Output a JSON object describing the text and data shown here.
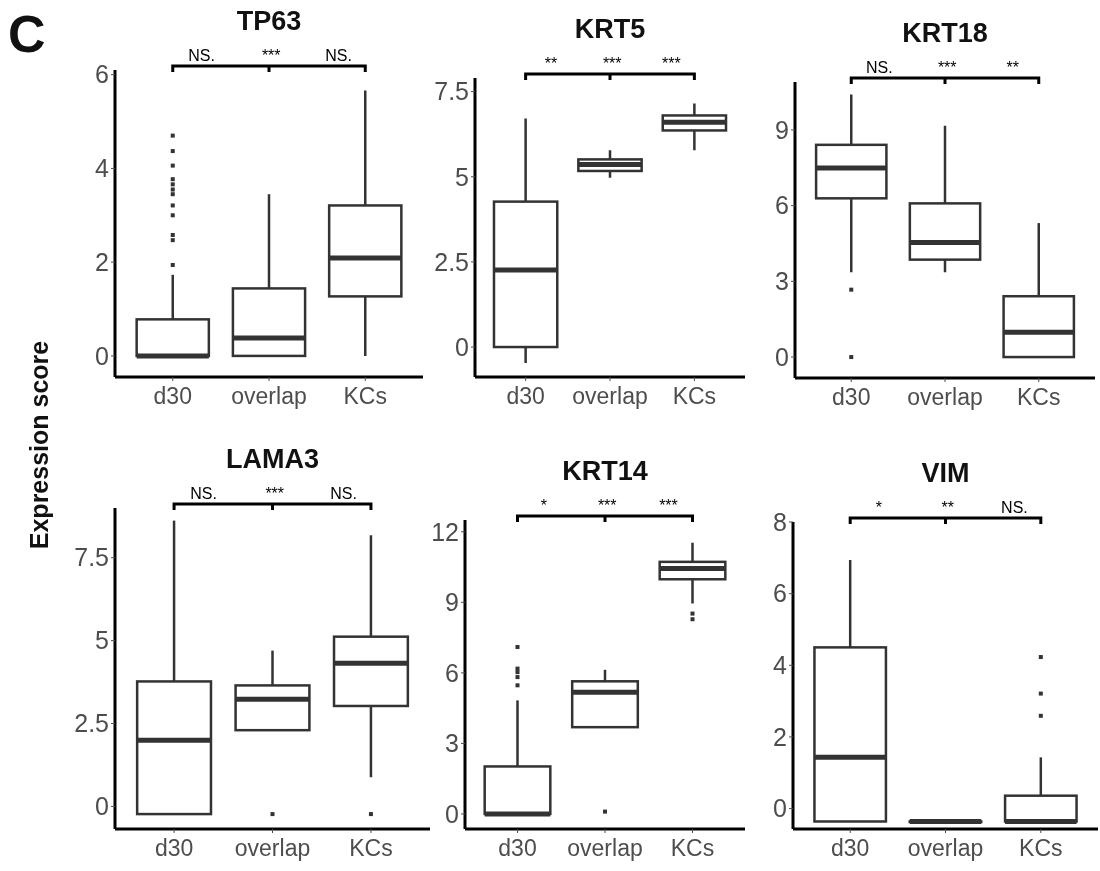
{
  "chart_data": [
    {
      "type": "box",
      "title": "TP63",
      "ylabel": "Expression score",
      "categories": [
        "d30",
        "overlap",
        "KCs"
      ],
      "ylim": [
        -0.45,
        6.1
      ],
      "yticks": [
        0,
        2,
        4,
        6
      ],
      "annotations": [
        "C",
        "NS. *** NS."
      ],
      "boxes": [
        {
          "low": 0,
          "q1": 0,
          "median": 0,
          "q3": 0.78,
          "high": 1.73,
          "outliers": [
            1.94,
            2.47,
            2.58,
            3.0,
            3.21,
            3.45,
            3.55,
            3.66,
            3.77,
            4.06,
            4.37,
            4.7
          ]
        },
        {
          "low": 0,
          "q1": 0,
          "median": 0.38,
          "q3": 1.44,
          "high": 3.45
        },
        {
          "low": 0,
          "q1": 1.27,
          "median": 2.09,
          "q3": 3.21,
          "high": 5.66
        }
      ]
    },
    {
      "type": "box",
      "title": "KRT5",
      "categories": [
        "d30",
        "overlap",
        "KCs"
      ],
      "ylim": [
        -0.88,
        7.9
      ],
      "yticks": [
        0,
        2.5,
        5,
        7.5
      ],
      "annotations": [
        "** *** ***"
      ],
      "boxes": [
        {
          "low": -0.47,
          "q1": 0,
          "median": 2.26,
          "q3": 4.27,
          "high": 6.71
        },
        {
          "low": 4.97,
          "q1": 5.17,
          "median": 5.36,
          "q3": 5.51,
          "high": 5.78
        },
        {
          "low": 5.78,
          "q1": 6.36,
          "median": 6.6,
          "q3": 6.8,
          "high": 7.15
        }
      ]
    },
    {
      "type": "box",
      "title": "KRT18",
      "categories": [
        "d30",
        "overlap",
        "KCs"
      ],
      "ylim": [
        -0.83,
        10.9
      ],
      "yticks": [
        0,
        3,
        6,
        9
      ],
      "annotations": [
        "NS. *** **"
      ],
      "boxes": [
        {
          "low": 3.36,
          "q1": 6.29,
          "median": 7.49,
          "q3": 8.41,
          "high": 10.4,
          "outliers": [
            0,
            2.67
          ]
        },
        {
          "low": 3.36,
          "q1": 3.86,
          "median": 4.54,
          "q3": 6.09,
          "high": 9.17
        },
        {
          "low": 0,
          "q1": 0,
          "median": 0.98,
          "q3": 2.41,
          "high": 5.31
        }
      ]
    },
    {
      "type": "box",
      "title": "LAMA3",
      "categories": [
        "d30",
        "overlap",
        "KCs"
      ],
      "ylim": [
        -0.68,
        9.0
      ],
      "yticks": [
        0,
        2.5,
        5,
        7.5
      ],
      "annotations": [
        "NS. *** NS."
      ],
      "boxes": [
        {
          "low": -0.23,
          "q1": -0.23,
          "median": 2.0,
          "q3": 3.77,
          "high": 8.62
        },
        {
          "low": 2.3,
          "q1": 2.3,
          "median": 3.23,
          "q3": 3.65,
          "high": 4.7,
          "outliers": [
            -0.23
          ]
        },
        {
          "low": 0.88,
          "q1": 3.03,
          "median": 4.32,
          "q3": 5.12,
          "high": 8.18,
          "outliers": [
            -0.23
          ]
        }
      ]
    },
    {
      "type": "box",
      "title": "KRT14",
      "categories": [
        "d30",
        "overlap",
        "KCs"
      ],
      "ylim": [
        -0.64,
        12.5
      ],
      "yticks": [
        0,
        3,
        6,
        9,
        12
      ],
      "annotations": [
        "* *** ***"
      ],
      "boxes": [
        {
          "low": 0,
          "q1": 0,
          "median": 0,
          "q3": 2.02,
          "high": 4.83,
          "outliers": [
            5.47,
            5.82,
            6.03,
            6.18,
            7.1
          ]
        },
        {
          "low": 3.69,
          "q1": 3.69,
          "median": 5.18,
          "q3": 5.64,
          "high": 6.13,
          "outliers": [
            0.1
          ]
        },
        {
          "low": 8.95,
          "q1": 9.98,
          "median": 10.44,
          "q3": 10.72,
          "high": 11.53,
          "outliers": [
            8.28,
            8.52
          ]
        }
      ]
    },
    {
      "type": "box",
      "title": "VIM",
      "categories": [
        "d30",
        "overlap",
        "KCs"
      ],
      "ylim": [
        -0.57,
        8.0
      ],
      "yticks": [
        0,
        2,
        4,
        6,
        8
      ],
      "annotations": [
        "* ** NS."
      ],
      "boxes": [
        {
          "low": -0.36,
          "q1": -0.36,
          "median": 1.43,
          "q3": 4.5,
          "high": 6.94
        },
        {
          "low": -0.36,
          "q1": -0.36,
          "median": -0.36,
          "q3": -0.36,
          "high": -0.36
        },
        {
          "low": -0.36,
          "q1": -0.36,
          "median": -0.36,
          "q3": 0.36,
          "high": 1.43,
          "outliers": [
            2.59,
            3.21,
            4.23
          ]
        }
      ]
    }
  ]
}
